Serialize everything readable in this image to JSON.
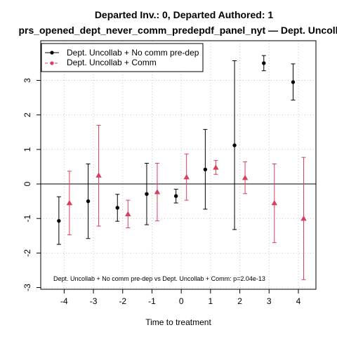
{
  "chart_data": {
    "type": "scatter",
    "title": "Departed Inv.: 0, Departed Authored: 1",
    "subtitle": "prs_opened_dept_never_comm_predepdf_panel_nyt — Dept. Uncoll",
    "xlabel": "Time to treatment",
    "ylabel": "",
    "xlim": [
      -4.8,
      4.6
    ],
    "ylim": [
      -3.05,
      4.15
    ],
    "x_ticks": [
      -4,
      -3,
      -2,
      -1,
      0,
      1,
      2,
      3,
      4
    ],
    "y_ticks": [
      -3,
      -2,
      -1,
      0,
      1,
      2,
      3
    ],
    "grid": true,
    "reference_line_y": 0,
    "legend_position": "top-left",
    "series": [
      {
        "name": "Dept. Uncollab + No comm pre-dep",
        "color": "#000000",
        "marker": "circle",
        "x": [
          -4,
          -3,
          -2,
          -1,
          0,
          1,
          2,
          3,
          4
        ],
        "y": [
          -1.07,
          -0.5,
          -0.69,
          -0.29,
          -0.35,
          0.42,
          1.12,
          3.5,
          2.95
        ],
        "lower": [
          -1.75,
          -1.58,
          -1.08,
          -1.18,
          -0.55,
          -0.73,
          -1.32,
          3.28,
          2.43
        ],
        "upper": [
          -0.37,
          0.58,
          -0.3,
          0.6,
          -0.15,
          1.58,
          3.57,
          3.72,
          3.48
        ]
      },
      {
        "name": "Dept. Uncollab + Comm",
        "color": "#d6405e",
        "marker": "triangle",
        "x": [
          -4,
          -3,
          -2,
          -1,
          0,
          1,
          2,
          3,
          4
        ],
        "y": [
          -0.55,
          0.25,
          -0.87,
          -0.23,
          0.2,
          0.48,
          0.18,
          -0.55,
          -1.0
        ],
        "lower": [
          -1.47,
          -1.22,
          -1.27,
          -1.07,
          -0.47,
          0.28,
          -0.28,
          -1.7,
          -2.77
        ],
        "upper": [
          0.37,
          1.7,
          -0.47,
          0.6,
          0.87,
          0.68,
          0.64,
          0.58,
          0.77
        ]
      }
    ],
    "annotation": "Dept. Uncollab + No comm pre-dep vs Dept. Uncollab + Comm: p=2.04e-13"
  }
}
